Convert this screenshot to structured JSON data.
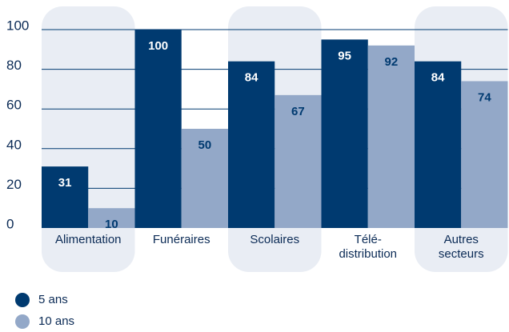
{
  "chart_data": {
    "type": "bar",
    "categories": [
      "Alimentation",
      "Funéraires",
      "Scolaires",
      "Télé-\ndistribution",
      "Autres\nsecteurs"
    ],
    "series": [
      {
        "name": "5 ans",
        "color": "#003a70",
        "values": [
          31,
          100,
          84,
          95,
          84
        ]
      },
      {
        "name": "10 ans",
        "color": "#93a8c8",
        "values": [
          10,
          50,
          67,
          92,
          74
        ]
      }
    ],
    "ylim": [
      0,
      100
    ],
    "yticks": [
      0,
      20,
      40,
      60,
      80,
      100
    ],
    "grid": true,
    "legend": "bottom-left"
  }
}
